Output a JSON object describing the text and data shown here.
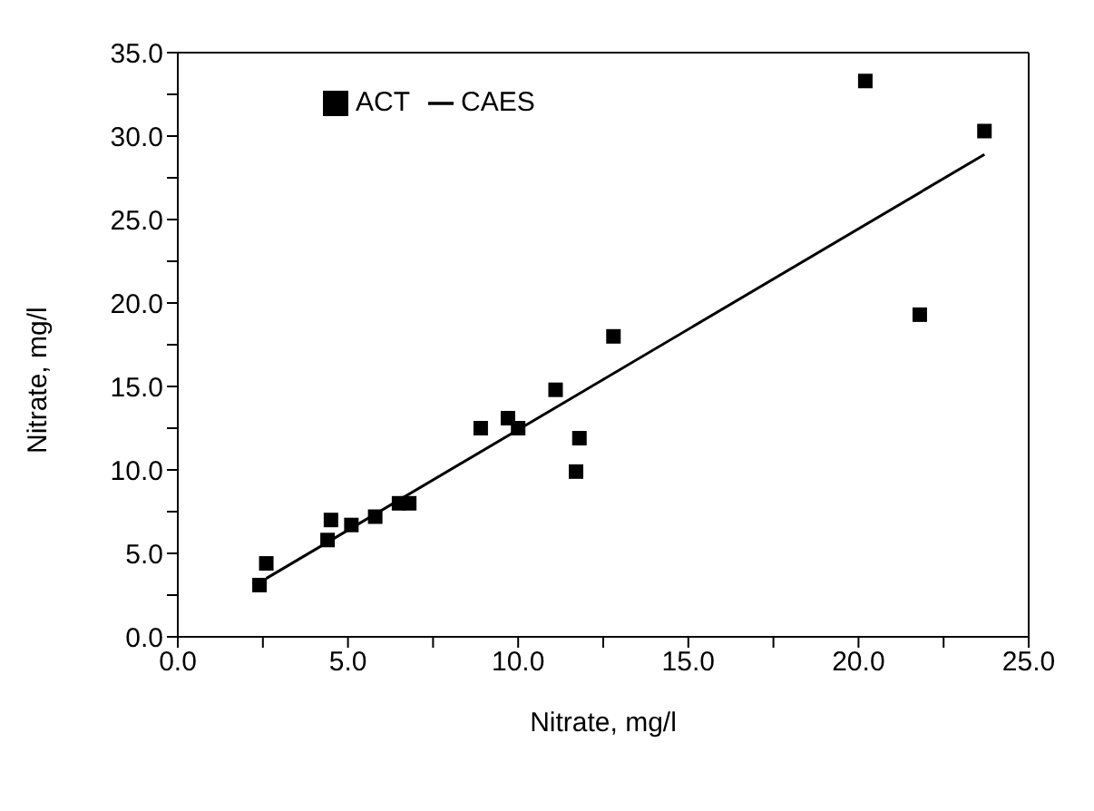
{
  "chart_data": {
    "type": "scatter",
    "xlabel": "Nitrate, mg/l",
    "ylabel": "Nitrate, mg/l",
    "xlim": [
      0,
      25
    ],
    "ylim": [
      0,
      35
    ],
    "xticks": [
      {
        "value": 0,
        "label": "0.0"
      },
      {
        "value": 2.5,
        "label": null
      },
      {
        "value": 5,
        "label": "5.0"
      },
      {
        "value": 7.5,
        "label": null
      },
      {
        "value": 10,
        "label": "10.0"
      },
      {
        "value": 12.5,
        "label": null
      },
      {
        "value": 15,
        "label": "15.0"
      },
      {
        "value": 17.5,
        "label": null
      },
      {
        "value": 20,
        "label": "20.0"
      },
      {
        "value": 22.5,
        "label": null
      },
      {
        "value": 25,
        "label": "25.0"
      }
    ],
    "yticks": [
      {
        "value": 0,
        "label": "0.0"
      },
      {
        "value": 2.5,
        "label": null
      },
      {
        "value": 5,
        "label": "5.0"
      },
      {
        "value": 7.5,
        "label": null
      },
      {
        "value": 10,
        "label": "10.0"
      },
      {
        "value": 12.5,
        "label": null
      },
      {
        "value": 15,
        "label": "15.0"
      },
      {
        "value": 17.5,
        "label": null
      },
      {
        "value": 20,
        "label": "20.0"
      },
      {
        "value": 22.5,
        "label": null
      },
      {
        "value": 25,
        "label": "25.0"
      },
      {
        "value": 27.5,
        "label": null
      },
      {
        "value": 30,
        "label": "30.0"
      },
      {
        "value": 32.5,
        "label": null
      },
      {
        "value": 35,
        "label": "35.0"
      }
    ],
    "legend": "top left",
    "grid": false,
    "series": [
      {
        "name": "ACT",
        "marker": "square",
        "color": "#000000",
        "x": [
          2.4,
          2.6,
          4.4,
          4.5,
          5.1,
          5.8,
          6.5,
          6.8,
          8.9,
          9.7,
          10.0,
          11.1,
          11.8,
          11.7,
          12.8,
          20.2,
          23.7,
          21.8
        ],
        "values": [
          3.1,
          4.4,
          5.8,
          7.0,
          6.7,
          7.2,
          8.0,
          8.0,
          12.5,
          13.1,
          12.5,
          14.8,
          11.9,
          9.9,
          18.0,
          33.3,
          30.3,
          19.3
        ]
      },
      {
        "name": "CAES",
        "type": "line",
        "marker": "none",
        "color": "#000000",
        "x": [
          2.6,
          23.7
        ],
        "values": [
          3.5,
          28.9
        ]
      }
    ]
  }
}
